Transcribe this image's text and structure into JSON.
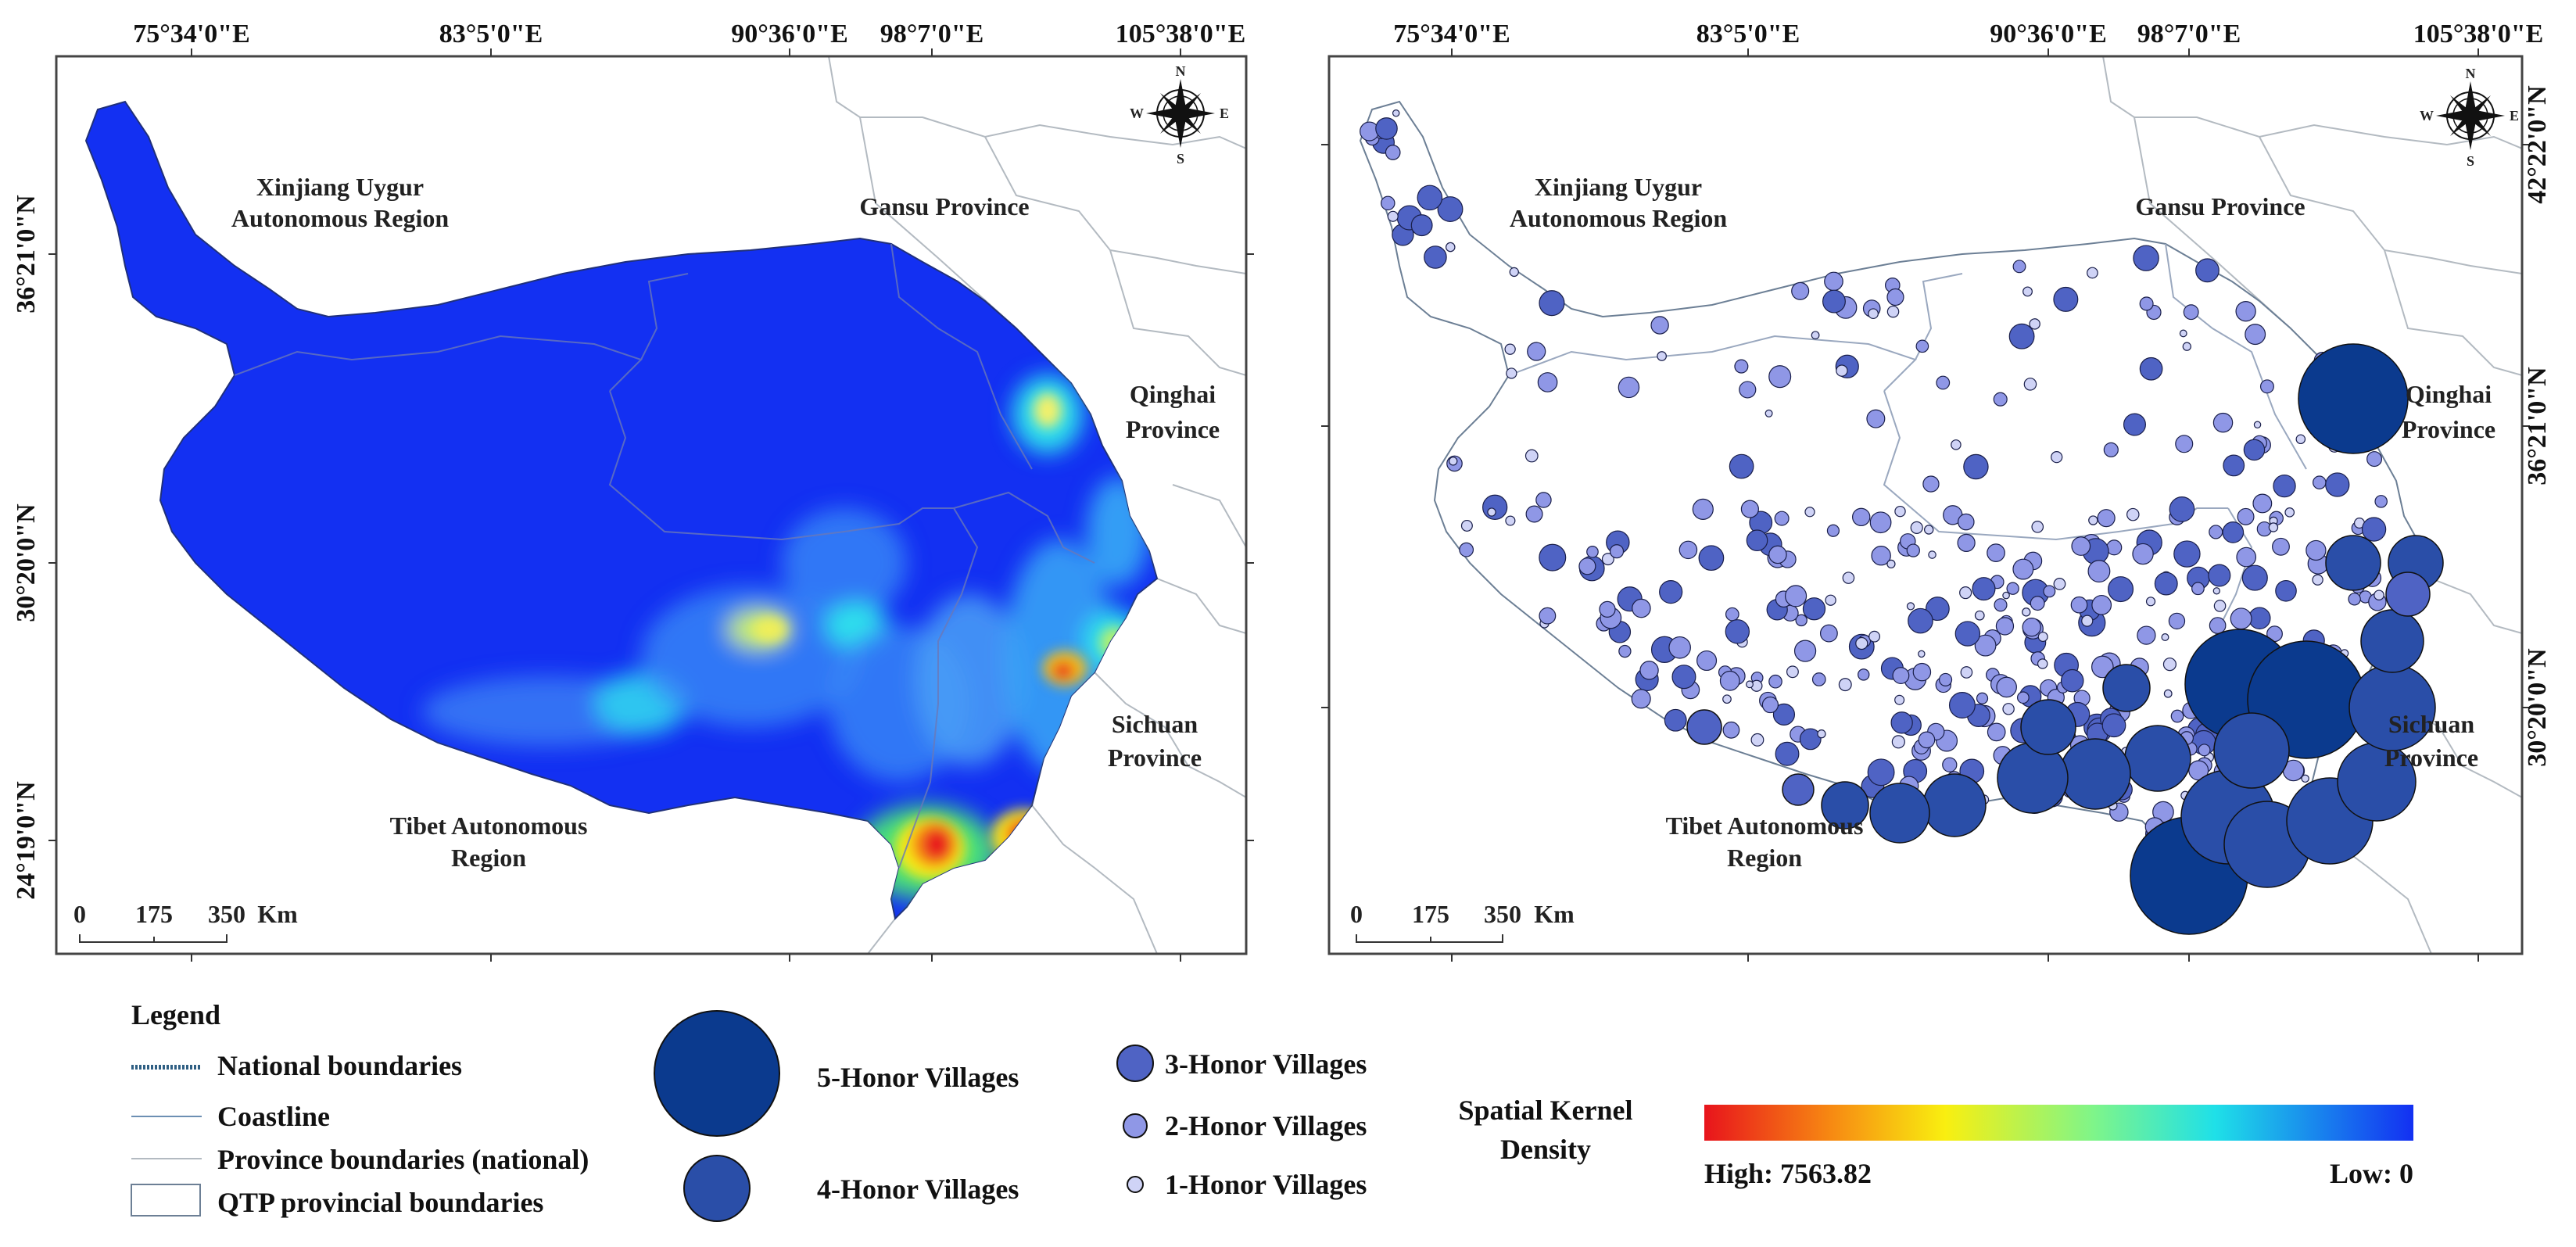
{
  "colors": {
    "frame": "#444444",
    "density_low": "#1330f2",
    "density_high": "#e8141c",
    "province_line": "#a7b0b8",
    "coast_line": "#6c8fb3",
    "national_line": "#2f5f83",
    "honor5": "#0b3a8e",
    "honor4": "#2a4ea8",
    "honor3": "#4f63c4",
    "honor2": "#8f97e6",
    "honor1": "#cfd3f6"
  },
  "longitude_ticks": [
    "75°34'0\"E",
    "83°5'0\"E",
    "90°36'0\"E",
    "98°7'0\"E",
    "105°38'0\"E"
  ],
  "left_map": {
    "lat_ticks": [
      "36°21'0\"N",
      "30°20'0\"N",
      "24°19'0\"N"
    ],
    "scale": {
      "zero": "0",
      "mid": "175",
      "end": "350",
      "unit": "Km"
    }
  },
  "right_map": {
    "lat_ticks": [
      "42°22'0\"N",
      "36°21'0\"N",
      "30°20'0\"N"
    ],
    "scale": {
      "zero": "0",
      "mid": "175",
      "end": "350",
      "unit": "Km"
    }
  },
  "region_labels": {
    "xinjiang_1": "Xinjiang Uygur",
    "xinjiang_2": "Autonomous Region",
    "gansu": "Gansu Province",
    "qinghai_1": "Qinghai",
    "qinghai_2": "Province",
    "sichuan_1": "Sichuan",
    "sichuan_2": "Province",
    "tibet_1": "Tibet Autonomous",
    "tibet_2": "Region"
  },
  "compass": {
    "n": "N",
    "s": "S",
    "e": "E",
    "w": "W"
  },
  "legend": {
    "title": "Legend",
    "national": "National boundaries",
    "coastline": "Coastline",
    "province": "Province boundaries (national)",
    "qtp": "QTP provincial boundaries",
    "honor5": "5-Honor Villages",
    "honor4": "4-Honor Villages",
    "honor3": "3-Honor Villages",
    "honor2": "2-Honor Villages",
    "honor1": "1-Honor Villages",
    "kde_title_1": "Spatial Kernel",
    "kde_title_2": "Density",
    "kde_high": "High: 7563.82",
    "kde_low": "Low: 0"
  }
}
